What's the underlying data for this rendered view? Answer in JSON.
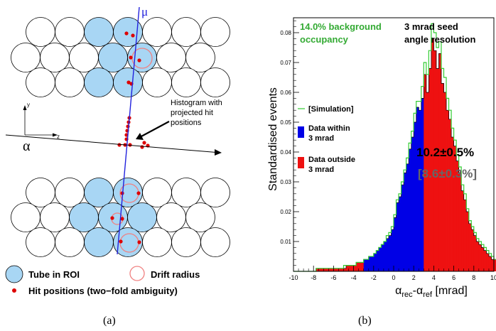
{
  "panel_a": {
    "muon_label": "μ",
    "alpha_label": "α",
    "axis_y": "y",
    "axis_z": "z",
    "histogram_note_line1": "Histogram with",
    "histogram_note_line2": "projected hit",
    "histogram_note_line3": "positions",
    "legend_tube": "Tube in ROI",
    "legend_drift": "Drift radius",
    "legend_hits": "Hit positions (two−fold ambiguity)",
    "caption": "(a)",
    "colors": {
      "tube_roi": "#a8d6f4",
      "drift": "#f08080",
      "hit": "#e00000",
      "muon": "#2222dd"
    }
  },
  "panel_b": {
    "caption": "(b)",
    "text_background_1": "14.0% background",
    "text_background_2": "occupancy",
    "text_seed_1": "3 mrad seed",
    "text_seed_2": "angle resolution",
    "legend_sim": "[Simulation]",
    "legend_within_1": "Data within",
    "legend_within_2": "3 mrad",
    "legend_outside_1": "Data outside",
    "legend_outside_2": "3 mrad",
    "result_main": "10.2±0.5%",
    "result_bracket": "[8.6±0.3%]",
    "colors": {
      "within": "#0000e6",
      "outside": "#ee1111",
      "sim": "#33cc33"
    }
  },
  "chart_data": {
    "type": "bar",
    "xlabel": "α_rec-α_ref [mrad]",
    "xlabel_main1": "α",
    "xlabel_sub1": "rec",
    "xlabel_dash": "-α",
    "xlabel_sub2": "ref",
    "xlabel_unit": " [mrad]",
    "ylabel": "Standardised events",
    "xlim": [
      -10,
      10
    ],
    "ylim": [
      0,
      0.085
    ],
    "x_ticks": [
      -10,
      -8,
      -6,
      -4,
      -2,
      0,
      2,
      4,
      6,
      8,
      10
    ],
    "x_tick_labels": [
      "-10",
      "-8",
      "-6",
      "-4",
      "-2",
      "0",
      "2",
      "4",
      "6",
      "8",
      "10"
    ],
    "y_ticks": [
      0.01,
      0.02,
      0.03,
      0.04,
      0.05,
      0.06,
      0.07,
      0.08
    ],
    "y_tick_labels": [
      "0.01",
      "0.02",
      "0.03",
      "0.04",
      "0.05",
      "0.06",
      "0.07",
      "0.08"
    ],
    "bin_width": 0.25,
    "bin_start": -10,
    "data_values": [
      0,
      0,
      0,
      0,
      0,
      0,
      0,
      0,
      0,
      0.001,
      0.001,
      0.001,
      0.001,
      0.001,
      0.001,
      0.001,
      0.001,
      0.001,
      0.001,
      0.001,
      0.001,
      0.002,
      0.002,
      0.002,
      0.002,
      0.003,
      0.003,
      0.003,
      0.004,
      0.004,
      0.005,
      0.005,
      0.006,
      0.007,
      0.008,
      0.009,
      0.01,
      0.011,
      0.012,
      0.014,
      0.018,
      0.023,
      0.025,
      0.029,
      0.033,
      0.036,
      0.041,
      0.045,
      0.05,
      0.055,
      0.054,
      0.058,
      0.066,
      0.06,
      0.068,
      0.078,
      0.074,
      0.068,
      0.073,
      0.063,
      0.06,
      0.054,
      0.051,
      0.045,
      0.042,
      0.037,
      0.033,
      0.027,
      0.024,
      0.02,
      0.016,
      0.014,
      0.012,
      0.01,
      0.009,
      0.008,
      0.007,
      0.006,
      0.005,
      0.004,
      0.004,
      0.003,
      0.003,
      0.003,
      0.002,
      0.002,
      0.002,
      0.002,
      0.001,
      0.001,
      0.001,
      0.001,
      0.001,
      0.001,
      0.001,
      0.001,
      0.001,
      0,
      0,
      0,
      0
    ],
    "sim_values": [
      0,
      0,
      0,
      0,
      0,
      0,
      0,
      0,
      0,
      0.001,
      0.001,
      0.001,
      0.001,
      0.001,
      0.001,
      0.001,
      0.001,
      0.001,
      0.001,
      0.001,
      0.002,
      0.002,
      0.002,
      0.002,
      0.002,
      0.003,
      0.003,
      0.003,
      0.004,
      0.004,
      0.005,
      0.005,
      0.006,
      0.007,
      0.008,
      0.009,
      0.01,
      0.012,
      0.013,
      0.015,
      0.019,
      0.024,
      0.026,
      0.03,
      0.034,
      0.038,
      0.043,
      0.047,
      0.053,
      0.057,
      0.057,
      0.062,
      0.07,
      0.066,
      0.074,
      0.083,
      0.08,
      0.075,
      0.077,
      0.068,
      0.065,
      0.058,
      0.054,
      0.048,
      0.044,
      0.039,
      0.035,
      0.029,
      0.026,
      0.021,
      0.017,
      0.015,
      0.013,
      0.011,
      0.01,
      0.009,
      0.008,
      0.007,
      0.006,
      0.005,
      0.004,
      0.004,
      0.003,
      0.003,
      0.002,
      0.002,
      0.002,
      0.002,
      0.001,
      0.001,
      0.001,
      0.001,
      0.001,
      0.001,
      0.001,
      0.001,
      0.001,
      0,
      0,
      0,
      0
    ],
    "window": [
      -3,
      3
    ],
    "series": [
      {
        "name": "[Simulation]"
      },
      {
        "name": "Data within 3 mrad"
      },
      {
        "name": "Data outside 3 mrad"
      }
    ]
  }
}
